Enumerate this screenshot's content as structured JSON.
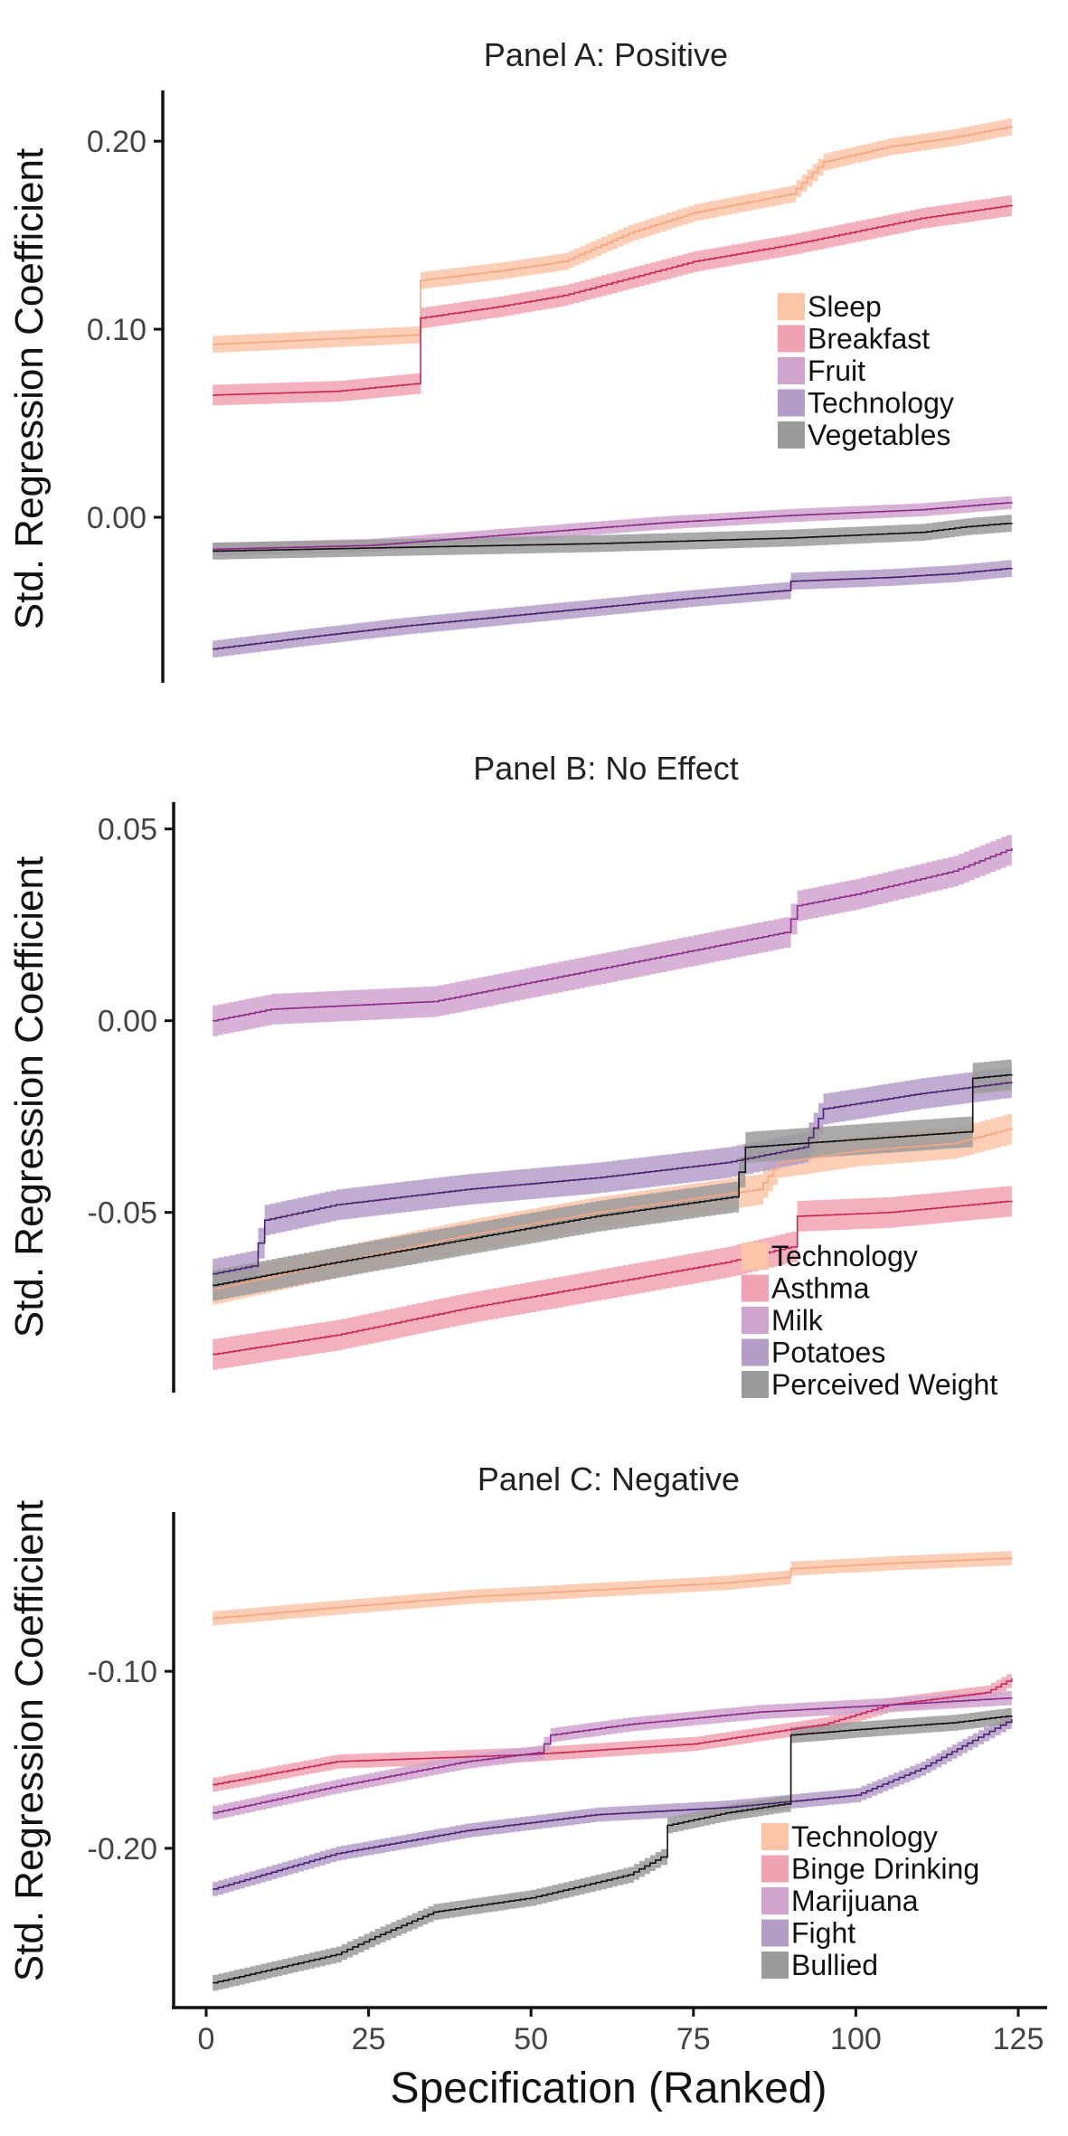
{
  "chart_data": [
    {
      "type": "line",
      "title": "Panel A: Positive",
      "ylabel": "Std. Regression Coefficient",
      "xlabel": "",
      "xlim": [
        -5,
        130
      ],
      "ylim": [
        -0.088,
        0.227
      ],
      "yticks": [
        0.0,
        0.1,
        0.2
      ],
      "ytick_labels": [
        "0.00",
        "0.10",
        "0.20"
      ],
      "legend_position": "right-center",
      "series": [
        {
          "name": "Sleep",
          "fill": "#fcc5a8",
          "line": "#f4a582",
          "band": 0.0045,
          "points": [
            [
              1,
              0.092
            ],
            [
              20,
              0.095
            ],
            [
              32,
              0.097
            ],
            [
              33,
              0.126
            ],
            [
              45,
              0.131
            ],
            [
              55,
              0.136
            ],
            [
              65,
              0.151
            ],
            [
              75,
              0.162
            ],
            [
              90,
              0.172
            ],
            [
              95,
              0.189
            ],
            [
              105,
              0.197
            ],
            [
              115,
              0.202
            ],
            [
              124,
              0.208
            ]
          ]
        },
        {
          "name": "Breakfast",
          "fill": "#f0a3b2",
          "line": "#c9275a",
          "band": 0.0055,
          "points": [
            [
              1,
              0.065
            ],
            [
              20,
              0.067
            ],
            [
              32,
              0.071
            ],
            [
              33,
              0.106
            ],
            [
              45,
              0.112
            ],
            [
              55,
              0.118
            ],
            [
              65,
              0.127
            ],
            [
              75,
              0.136
            ],
            [
              90,
              0.145
            ],
            [
              100,
              0.152
            ],
            [
              110,
              0.159
            ],
            [
              124,
              0.166
            ]
          ]
        },
        {
          "name": "Fruit",
          "fill": "#d1a4cf",
          "line": "#8b2c8a",
          "band": 0.0035,
          "points": [
            [
              1,
              -0.017
            ],
            [
              25,
              -0.015
            ],
            [
              40,
              -0.011
            ],
            [
              55,
              -0.007
            ],
            [
              70,
              -0.003
            ],
            [
              90,
              0.001
            ],
            [
              110,
              0.004
            ],
            [
              124,
              0.008
            ]
          ]
        },
        {
          "name": "Technology",
          "fill": "#b49ec8",
          "line": "#4b2272",
          "band": 0.0045,
          "points": [
            [
              1,
              -0.07
            ],
            [
              15,
              -0.064
            ],
            [
              30,
              -0.058
            ],
            [
              45,
              -0.053
            ],
            [
              60,
              -0.048
            ],
            [
              75,
              -0.043
            ],
            [
              89,
              -0.039
            ],
            [
              90,
              -0.034
            ],
            [
              105,
              -0.032
            ],
            [
              115,
              -0.03
            ],
            [
              124,
              -0.027
            ]
          ]
        },
        {
          "name": "Vegetables",
          "fill": "#9b9b9b",
          "line": "#111111",
          "band": 0.0045,
          "points": [
            [
              1,
              -0.018
            ],
            [
              30,
              -0.016
            ],
            [
              60,
              -0.014
            ],
            [
              90,
              -0.011
            ],
            [
              110,
              -0.008
            ],
            [
              117,
              -0.005
            ],
            [
              124,
              -0.003
            ]
          ]
        }
      ]
    },
    {
      "type": "line",
      "title": "Panel B: No Effect",
      "ylabel": "Std. Regression Coefficient",
      "xlabel": "",
      "xlim": [
        -5,
        130
      ],
      "ylim": [
        -0.097,
        0.057
      ],
      "yticks": [
        -0.05,
        0.0,
        0.05
      ],
      "ytick_labels": [
        "-0.05",
        "0.00",
        "0.05"
      ],
      "legend_position": "bottom-right",
      "series": [
        {
          "name": "Technology",
          "fill": "#fcc5a8",
          "line": "#f4a582",
          "band": 0.004,
          "points": [
            [
              1,
              -0.07
            ],
            [
              20,
              -0.063
            ],
            [
              40,
              -0.056
            ],
            [
              60,
              -0.05
            ],
            [
              85,
              -0.044
            ],
            [
              88,
              -0.037
            ],
            [
              100,
              -0.034
            ],
            [
              115,
              -0.032
            ],
            [
              124,
              -0.028
            ]
          ]
        },
        {
          "name": "Asthma",
          "fill": "#f0a3b2",
          "line": "#c9275a",
          "band": 0.004,
          "points": [
            [
              1,
              -0.087
            ],
            [
              20,
              -0.082
            ],
            [
              40,
              -0.075
            ],
            [
              60,
              -0.069
            ],
            [
              80,
              -0.063
            ],
            [
              90,
              -0.059
            ],
            [
              91,
              -0.051
            ],
            [
              105,
              -0.05
            ],
            [
              124,
              -0.047
            ]
          ]
        },
        {
          "name": "Milk",
          "fill": "#d1a4cf",
          "line": "#8b2c8a",
          "band": 0.004,
          "points": [
            [
              1,
              0.0
            ],
            [
              10,
              0.003
            ],
            [
              35,
              0.005
            ],
            [
              50,
              0.01
            ],
            [
              65,
              0.015
            ],
            [
              80,
              0.02
            ],
            [
              89,
              0.023
            ],
            [
              91,
              0.03
            ],
            [
              100,
              0.033
            ],
            [
              115,
              0.039
            ],
            [
              124,
              0.045
            ]
          ]
        },
        {
          "name": "Potatoes",
          "fill": "#b49ec8",
          "line": "#4b2272",
          "band": 0.004,
          "points": [
            [
              1,
              -0.066
            ],
            [
              7,
              -0.064
            ],
            [
              9,
              -0.052
            ],
            [
              20,
              -0.048
            ],
            [
              40,
              -0.044
            ],
            [
              60,
              -0.041
            ],
            [
              80,
              -0.037
            ],
            [
              92,
              -0.033
            ],
            [
              95,
              -0.023
            ],
            [
              110,
              -0.019
            ],
            [
              124,
              -0.016
            ]
          ]
        },
        {
          "name": "Perceived Weight",
          "fill": "#9b9b9b",
          "line": "#111111",
          "band": 0.004,
          "points": [
            [
              1,
              -0.069
            ],
            [
              20,
              -0.063
            ],
            [
              40,
              -0.057
            ],
            [
              60,
              -0.051
            ],
            [
              81,
              -0.046
            ],
            [
              83,
              -0.033
            ],
            [
              100,
              -0.031
            ],
            [
              117,
              -0.029
            ],
            [
              118,
              -0.015
            ],
            [
              124,
              -0.014
            ]
          ]
        }
      ]
    },
    {
      "type": "line",
      "title": "Panel C: Negative",
      "ylabel": "Std. Regression Coefficient",
      "xlabel": "Specification (Ranked)",
      "xlim": [
        -5,
        130
      ],
      "ylim": [
        -0.29,
        -0.01
      ],
      "yticks": [
        -0.2,
        -0.1
      ],
      "ytick_labels": [
        "-0.20",
        "-0.10"
      ],
      "xticks": [
        0,
        25,
        50,
        75,
        100,
        125
      ],
      "xtick_labels": [
        "0",
        "25",
        "50",
        "75",
        "100",
        "125"
      ],
      "legend_position": "bottom-right",
      "series": [
        {
          "name": "Technology",
          "fill": "#fcc5a8",
          "line": "#f4a582",
          "band": 0.004,
          "points": [
            [
              1,
              -0.07
            ],
            [
              20,
              -0.064
            ],
            [
              40,
              -0.058
            ],
            [
              60,
              -0.054
            ],
            [
              80,
              -0.05
            ],
            [
              89,
              -0.047
            ],
            [
              90,
              -0.042
            ],
            [
              105,
              -0.039
            ],
            [
              124,
              -0.036
            ]
          ]
        },
        {
          "name": "Binge Drinking",
          "fill": "#f0a3b2",
          "line": "#c9275a",
          "band": 0.004,
          "points": [
            [
              1,
              -0.164
            ],
            [
              20,
              -0.151
            ],
            [
              50,
              -0.147
            ],
            [
              75,
              -0.141
            ],
            [
              95,
              -0.13
            ],
            [
              105,
              -0.119
            ],
            [
              120,
              -0.112
            ],
            [
              124,
              -0.104
            ]
          ]
        },
        {
          "name": "Marijuana",
          "fill": "#d1a4cf",
          "line": "#8b2c8a",
          "band": 0.004,
          "points": [
            [
              1,
              -0.18
            ],
            [
              20,
              -0.165
            ],
            [
              40,
              -0.151
            ],
            [
              51,
              -0.146
            ],
            [
              53,
              -0.136
            ],
            [
              65,
              -0.13
            ],
            [
              85,
              -0.123
            ],
            [
              105,
              -0.119
            ],
            [
              124,
              -0.115
            ]
          ]
        },
        {
          "name": "Fight",
          "fill": "#b49ec8",
          "line": "#4b2272",
          "band": 0.004,
          "points": [
            [
              1,
              -0.223
            ],
            [
              20,
              -0.203
            ],
            [
              40,
              -0.19
            ],
            [
              60,
              -0.181
            ],
            [
              80,
              -0.177
            ],
            [
              100,
              -0.17
            ],
            [
              110,
              -0.155
            ],
            [
              118,
              -0.139
            ],
            [
              124,
              -0.127
            ]
          ]
        },
        {
          "name": "Bullied",
          "fill": "#9b9b9b",
          "line": "#111111",
          "band": 0.0045,
          "points": [
            [
              1,
              -0.276
            ],
            [
              20,
              -0.26
            ],
            [
              26,
              -0.25
            ],
            [
              35,
              -0.236
            ],
            [
              50,
              -0.228
            ],
            [
              65,
              -0.215
            ],
            [
              70,
              -0.205
            ],
            [
              71,
              -0.187
            ],
            [
              80,
              -0.18
            ],
            [
              89,
              -0.175
            ],
            [
              90,
              -0.136
            ],
            [
              100,
              -0.133
            ],
            [
              115,
              -0.129
            ],
            [
              124,
              -0.125
            ]
          ]
        }
      ]
    }
  ]
}
